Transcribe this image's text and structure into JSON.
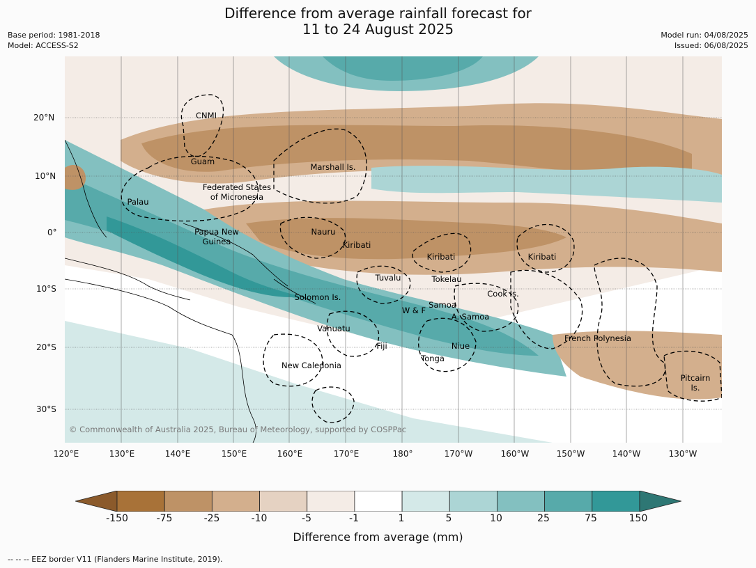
{
  "header": {
    "title_line1": "Difference from average rainfall forecast for",
    "title_line2": "11 to 24 August 2025",
    "base_period": "Base period: 1981-2018",
    "model": "Model: ACCESS-S2",
    "model_run": "Model run: 04/08/2025",
    "issued": "Issued: 06/08/2025"
  },
  "map": {
    "lon_ticks": [
      "120°E",
      "130°E",
      "140°E",
      "150°E",
      "160°E",
      "170°E",
      "180°",
      "170°W",
      "160°W",
      "150°W",
      "140°W",
      "130°W"
    ],
    "lat_ticks": [
      "20°N",
      "10°N",
      "0°",
      "10°S",
      "20°S",
      "30°S"
    ],
    "places": [
      {
        "name": "CNMI"
      },
      {
        "name": "Guam"
      },
      {
        "name": "Marshall Is."
      },
      {
        "name": "Federated States"
      },
      {
        "name": "of Micronesia"
      },
      {
        "name": "Palau"
      },
      {
        "name": "Papua New"
      },
      {
        "name": "Guinea"
      },
      {
        "name": "Nauru"
      },
      {
        "name": "Kiribati"
      },
      {
        "name": "Kiribati"
      },
      {
        "name": "Kiribati"
      },
      {
        "name": "Tuvalu"
      },
      {
        "name": "Tokelau"
      },
      {
        "name": "Cook Is."
      },
      {
        "name": "Solomon Is."
      },
      {
        "name": "Samoa"
      },
      {
        "name": "W & F"
      },
      {
        "name": "A. Samoa"
      },
      {
        "name": "Vanuatu"
      },
      {
        "name": "Fiji"
      },
      {
        "name": "Niue"
      },
      {
        "name": "Tonga"
      },
      {
        "name": "French Polynesia"
      },
      {
        "name": "New Caledonia"
      },
      {
        "name": "Pitcairn"
      },
      {
        "name": "Is."
      }
    ],
    "copyright": "© Commonwealth of Australia 2025, Bureau of Meteorology, supported by COSPPac"
  },
  "colorbar": {
    "title": "Difference from average (mm)",
    "labels": [
      "-150",
      "-75",
      "-25",
      "-10",
      "-5",
      "-1",
      "1",
      "5",
      "10",
      "25",
      "75",
      "150"
    ],
    "colors": [
      "#8b5a2b",
      "#a87238",
      "#be9266",
      "#d3af8d",
      "#e5d2c2",
      "#f4ece6",
      "#ffffff",
      "#d4e9e8",
      "#acd5d5",
      "#83c0c0",
      "#57aaaa",
      "#329898",
      "#2e7774"
    ]
  },
  "footer": "-- -- -- EEZ border V11 (Flanders Marine Institute, 2019)."
}
